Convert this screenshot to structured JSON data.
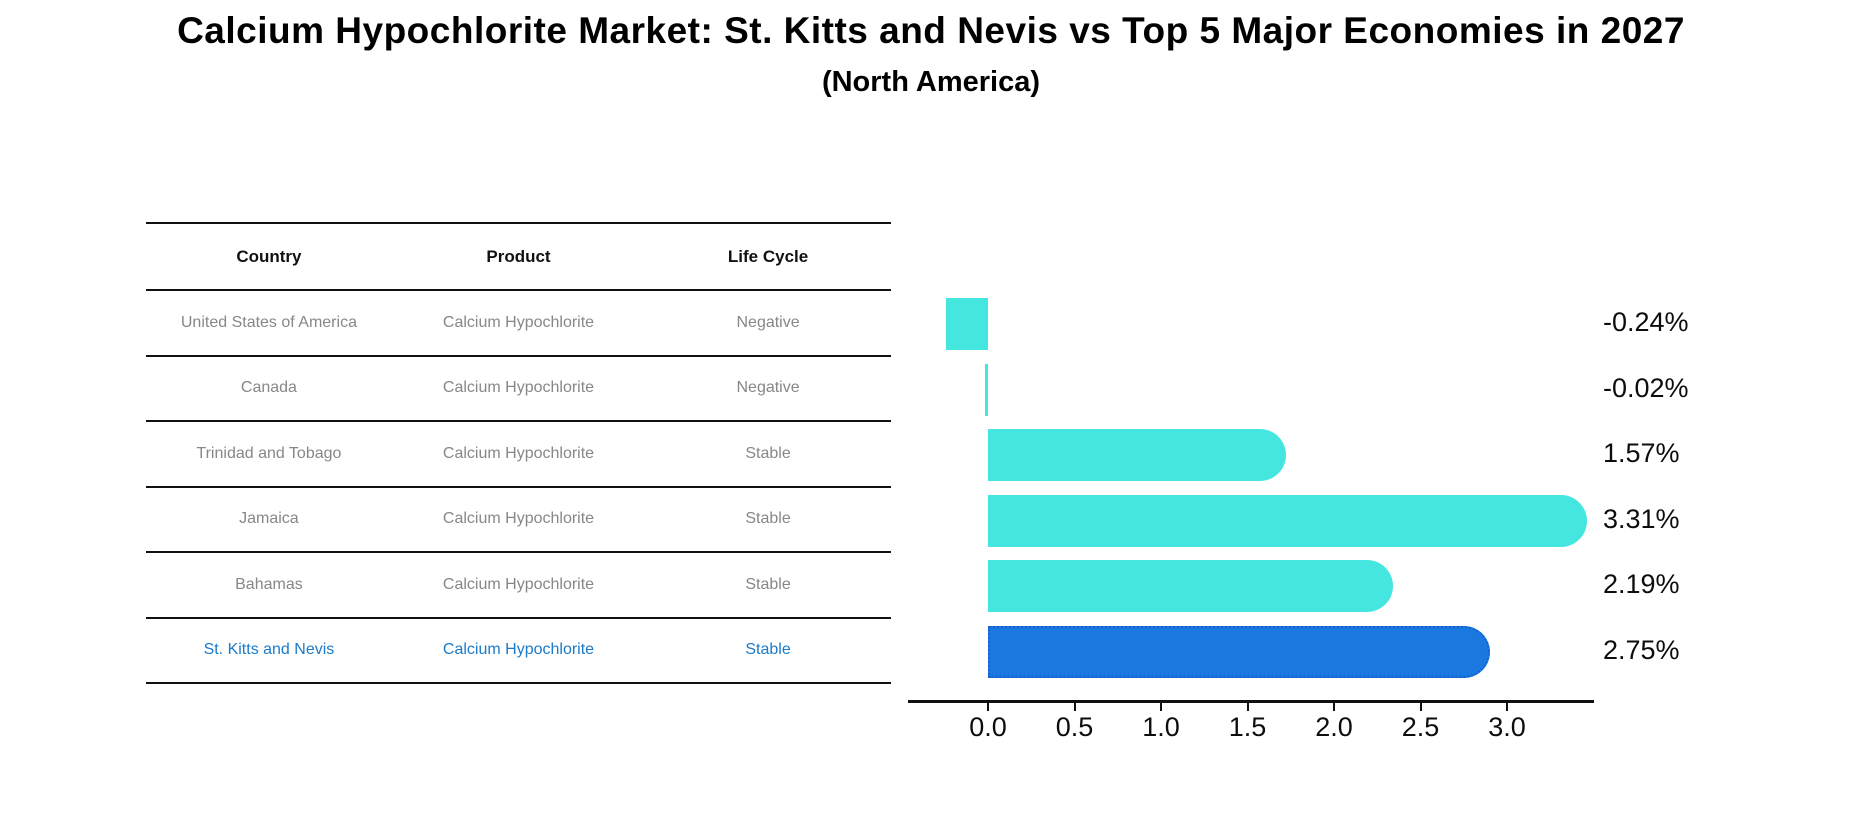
{
  "title": "Calcium Hypochlorite Market: St. Kitts and Nevis vs Top 5 Major Economies in 2027",
  "subtitle": "(North America)",
  "table": {
    "columns": [
      "Country",
      "Product",
      "Life Cycle"
    ],
    "rows": [
      {
        "country": "United States of America",
        "product": "Calcium Hypochlorite",
        "life_cycle": "Negative",
        "highlight": false
      },
      {
        "country": "Canada",
        "product": "Calcium Hypochlorite",
        "life_cycle": "Negative",
        "highlight": false
      },
      {
        "country": "Trinidad and Tobago",
        "product": "Calcium Hypochlorite",
        "life_cycle": "Stable",
        "highlight": false
      },
      {
        "country": "Jamaica",
        "product": "Calcium Hypochlorite",
        "life_cycle": "Stable",
        "highlight": false
      },
      {
        "country": "Bahamas",
        "product": "Calcium Hypochlorite",
        "life_cycle": "Stable",
        "highlight": false
      },
      {
        "country": "St. Kitts and Nevis",
        "product": "Calcium Hypochlorite",
        "life_cycle": "Stable",
        "highlight": true
      }
    ],
    "highlight_text_color": "#1b7ac9",
    "text_color": "#878787",
    "header_color": "#111111"
  },
  "chart_data": {
    "type": "bar",
    "orientation": "horizontal",
    "title": "Calcium Hypochlorite Market: St. Kitts and Nevis vs Top 5 Major Economies in 2027 (North America)",
    "categories": [
      "United States of America",
      "Canada",
      "Trinidad and Tobago",
      "Jamaica",
      "Bahamas",
      "St. Kitts and Nevis"
    ],
    "values": [
      -0.24,
      -0.02,
      1.57,
      3.31,
      2.19,
      2.75
    ],
    "value_labels": [
      "-0.24%",
      "-0.02%",
      "1.57%",
      "3.31%",
      "2.19%",
      "2.75%"
    ],
    "xlabel": "",
    "ylabel": "",
    "xlim": [
      -0.46,
      3.5
    ],
    "xticks": [
      0.0,
      0.5,
      1.0,
      1.5,
      2.0,
      2.5,
      3.0
    ],
    "xtick_labels": [
      "0.0",
      "0.5",
      "1.0",
      "1.5",
      "2.0",
      "2.5",
      "3.0"
    ],
    "grid": false,
    "legend": false,
    "bar_color": "#45e6e0",
    "highlight_index": 5,
    "highlight_color": "#1b78e0",
    "highlight_border_color": "#1263cf"
  }
}
